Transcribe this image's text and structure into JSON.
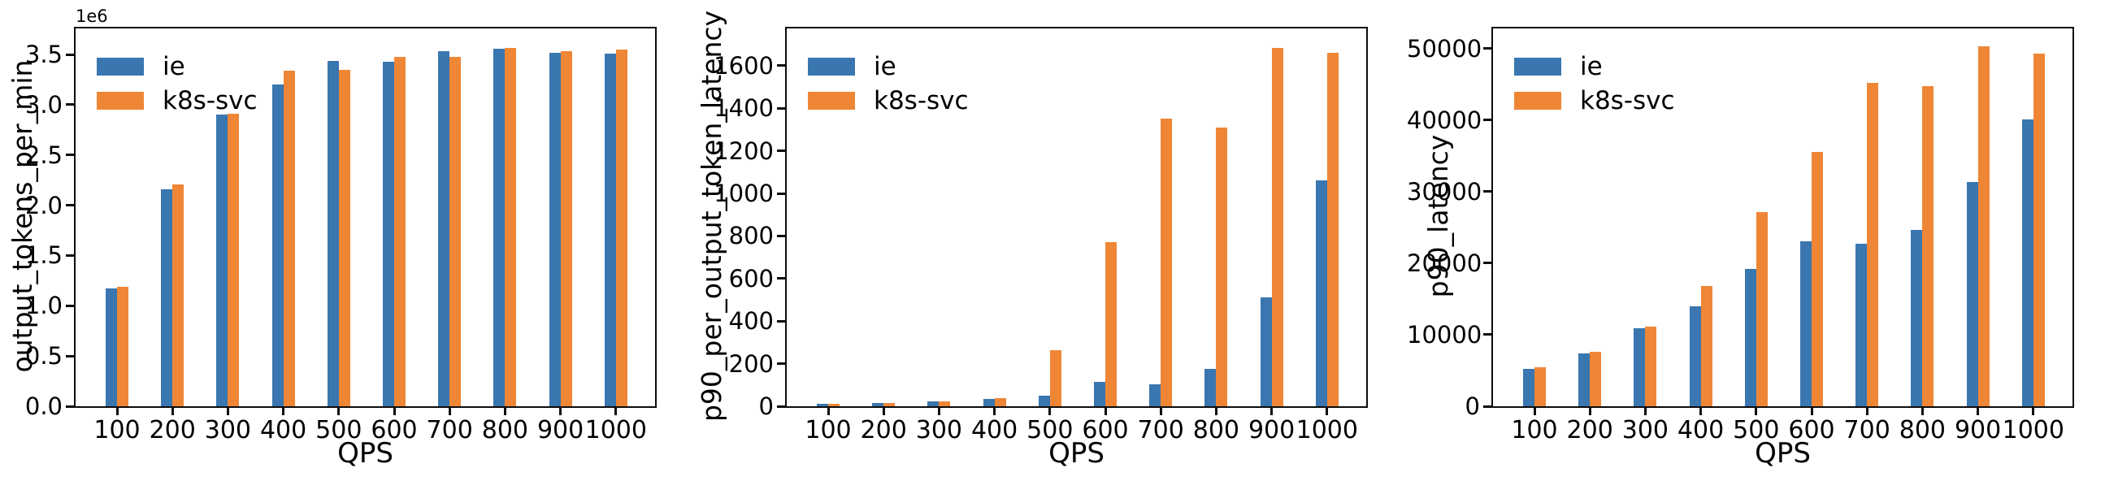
{
  "colors": {
    "ie": "#3a76af",
    "k8s_svc": "#ef8636",
    "axis": "#0c0c0c",
    "background": "#ffffff"
  },
  "chart_data": [
    {
      "type": "bar",
      "title": "",
      "ylabel": "output_tokens_per_min",
      "xlabel": "QPS",
      "offset_text": "1e6",
      "grid": false,
      "legend_position": "upper left",
      "categories": [
        "100",
        "200",
        "300",
        "400",
        "500",
        "600",
        "700",
        "800",
        "900",
        "1000"
      ],
      "series": [
        {
          "name": "ie",
          "color": "#3a76af",
          "values": [
            1170000,
            2160000,
            2900000,
            3200000,
            3440000,
            3430000,
            3530000,
            3560000,
            3520000,
            3510000
          ]
        },
        {
          "name": "k8s-svc",
          "color": "#ef8636",
          "values": [
            1190000,
            2210000,
            2910000,
            3340000,
            3350000,
            3480000,
            3480000,
            3570000,
            3530000,
            3550000
          ]
        }
      ],
      "ylim": [
        0,
        3760000
      ],
      "ytick_values": [
        0,
        500000,
        1000000,
        1500000,
        2000000,
        2500000,
        3000000,
        3500000
      ],
      "ytick_labels": [
        "0.0",
        "0.5",
        "1.0",
        "1.5",
        "2.0",
        "2.5",
        "3.0",
        "3.5"
      ]
    },
    {
      "type": "bar",
      "title": "",
      "ylabel": "p90_per_output_token_latency",
      "xlabel": "QPS",
      "offset_text": "",
      "grid": false,
      "legend_position": "upper left",
      "categories": [
        "100",
        "200",
        "300",
        "400",
        "500",
        "600",
        "700",
        "800",
        "900",
        "1000"
      ],
      "series": [
        {
          "name": "ie",
          "color": "#3a76af",
          "values": [
            10,
            17,
            23,
            36,
            50,
            115,
            105,
            175,
            510,
            1060
          ]
        },
        {
          "name": "k8s-svc",
          "color": "#ef8636",
          "values": [
            10,
            17,
            23,
            40,
            265,
            770,
            1350,
            1310,
            1685,
            1660
          ]
        }
      ],
      "ylim": [
        0,
        1775
      ],
      "ytick_values": [
        0,
        200,
        400,
        600,
        800,
        1000,
        1200,
        1400,
        1600
      ],
      "ytick_labels": [
        "0",
        "200",
        "400",
        "600",
        "800",
        "1000",
        "1200",
        "1400",
        "1600"
      ]
    },
    {
      "type": "bar",
      "title": "",
      "ylabel": "p90_latency",
      "xlabel": "QPS",
      "offset_text": "",
      "grid": false,
      "legend_position": "upper left",
      "categories": [
        "100",
        "200",
        "300",
        "400",
        "500",
        "600",
        "700",
        "800",
        "900",
        "1000"
      ],
      "series": [
        {
          "name": "ie",
          "color": "#3a76af",
          "values": [
            5200,
            7400,
            10900,
            14000,
            19200,
            23000,
            22700,
            24600,
            31300,
            40100
          ]
        },
        {
          "name": "k8s-svc",
          "color": "#ef8636",
          "values": [
            5400,
            7600,
            11100,
            16800,
            27100,
            35500,
            45200,
            44700,
            50300,
            49300
          ]
        }
      ],
      "ylim": [
        0,
        52800
      ],
      "ytick_values": [
        0,
        10000,
        20000,
        30000,
        40000,
        50000
      ],
      "ytick_labels": [
        "0",
        "10000",
        "20000",
        "30000",
        "40000",
        "50000"
      ]
    }
  ]
}
